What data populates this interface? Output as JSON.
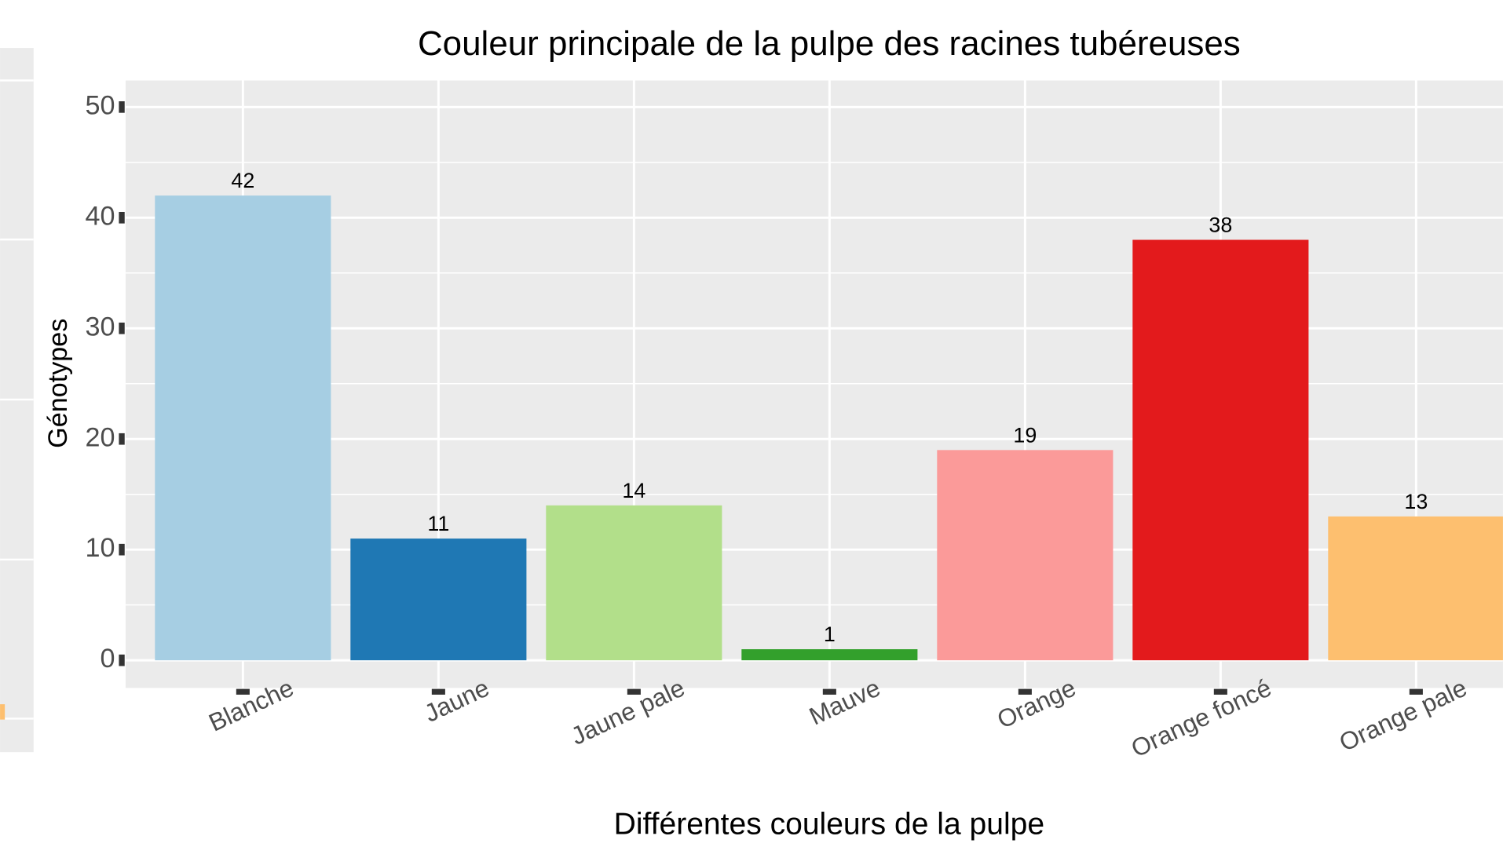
{
  "chart_data": {
    "type": "bar",
    "title": "Couleur principale de la pulpe des racines tubéreuses",
    "x_label": "Différentes couleurs de la pulpe",
    "y_label": "Génotypes",
    "categories": [
      "Blanche",
      "Jaune",
      "Jaune pale",
      "Mauve",
      "Orange",
      "Orange foncé",
      "Orange pale"
    ],
    "values": [
      42,
      11,
      14,
      1,
      19,
      38,
      13
    ],
    "colors": [
      "#a6cee3",
      "#1f78b4",
      "#b2df8a",
      "#33a02c",
      "#fb9a99",
      "#e31a1c",
      "#fdbf6f"
    ],
    "ylim": [
      -2.5,
      52.4
    ],
    "yticks": [
      0,
      10,
      20,
      30,
      40,
      50
    ],
    "grid": true
  }
}
